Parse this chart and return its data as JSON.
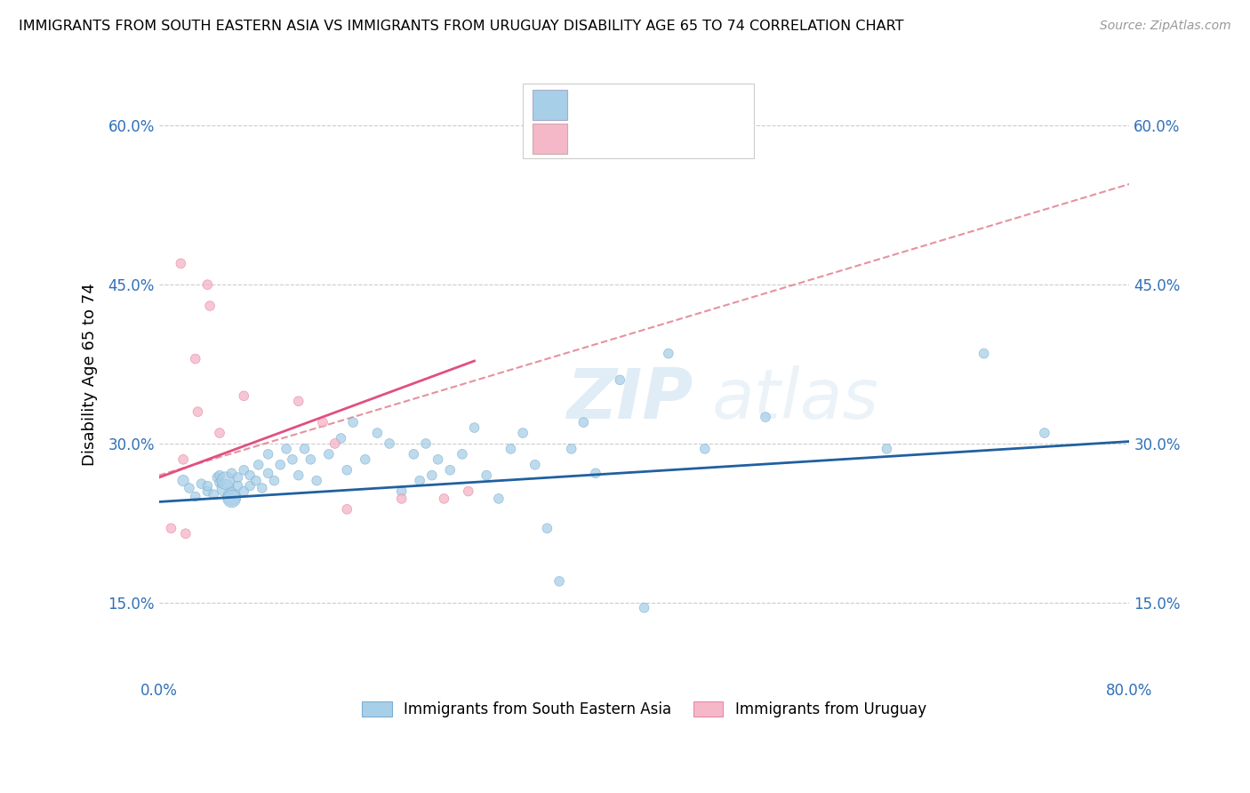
{
  "title": "IMMIGRANTS FROM SOUTH EASTERN ASIA VS IMMIGRANTS FROM URUGUAY DISABILITY AGE 65 TO 74 CORRELATION CHART",
  "source": "Source: ZipAtlas.com",
  "ylabel": "Disability Age 65 to 74",
  "xlim": [
    0.0,
    0.8
  ],
  "ylim": [
    0.08,
    0.65
  ],
  "y_ticks": [
    0.15,
    0.3,
    0.45,
    0.6
  ],
  "y_tick_labels": [
    "15.0%",
    "30.0%",
    "45.0%",
    "60.0%"
  ],
  "color_blue": "#a8cfe8",
  "color_blue_edge": "#7aaed0",
  "color_pink": "#f4b8c8",
  "color_pink_edge": "#e888a8",
  "color_blue_line": "#2060a0",
  "color_pink_line": "#e05080",
  "color_blue_text": "#3070b8",
  "color_dashed_line": "#e08090",
  "watermark_zip": "ZIP",
  "watermark_atlas": "atlas",
  "blue_scatter_x": [
    0.02,
    0.025,
    0.03,
    0.035,
    0.04,
    0.04,
    0.045,
    0.048,
    0.05,
    0.05,
    0.055,
    0.055,
    0.06,
    0.06,
    0.06,
    0.065,
    0.065,
    0.07,
    0.07,
    0.075,
    0.075,
    0.08,
    0.082,
    0.085,
    0.09,
    0.09,
    0.095,
    0.1,
    0.105,
    0.11,
    0.115,
    0.12,
    0.125,
    0.13,
    0.14,
    0.15,
    0.155,
    0.16,
    0.17,
    0.18,
    0.19,
    0.2,
    0.21,
    0.215,
    0.22,
    0.225,
    0.23,
    0.24,
    0.25,
    0.26,
    0.27,
    0.28,
    0.29,
    0.3,
    0.31,
    0.32,
    0.33,
    0.34,
    0.35,
    0.36,
    0.38,
    0.4,
    0.42,
    0.45,
    0.5,
    0.6,
    0.68,
    0.73
  ],
  "blue_scatter_y": [
    0.265,
    0.258,
    0.25,
    0.262,
    0.255,
    0.26,
    0.252,
    0.268,
    0.263,
    0.27,
    0.258,
    0.265,
    0.25,
    0.248,
    0.272,
    0.268,
    0.26,
    0.255,
    0.275,
    0.27,
    0.26,
    0.265,
    0.28,
    0.258,
    0.272,
    0.29,
    0.265,
    0.28,
    0.295,
    0.285,
    0.27,
    0.295,
    0.285,
    0.265,
    0.29,
    0.305,
    0.275,
    0.32,
    0.285,
    0.31,
    0.3,
    0.255,
    0.29,
    0.265,
    0.3,
    0.27,
    0.285,
    0.275,
    0.29,
    0.315,
    0.27,
    0.248,
    0.295,
    0.31,
    0.28,
    0.22,
    0.17,
    0.295,
    0.32,
    0.272,
    0.36,
    0.145,
    0.385,
    0.295,
    0.325,
    0.295,
    0.385,
    0.31
  ],
  "blue_scatter_size": [
    80,
    60,
    60,
    60,
    60,
    60,
    60,
    60,
    60,
    60,
    200,
    200,
    200,
    200,
    60,
    60,
    60,
    60,
    60,
    60,
    60,
    60,
    60,
    60,
    60,
    60,
    60,
    60,
    60,
    60,
    60,
    60,
    60,
    60,
    60,
    60,
    60,
    60,
    60,
    60,
    60,
    60,
    60,
    60,
    60,
    60,
    60,
    60,
    60,
    60,
    60,
    60,
    60,
    60,
    60,
    60,
    60,
    60,
    60,
    60,
    60,
    60,
    60,
    60,
    60,
    60,
    60,
    60
  ],
  "pink_scatter_x": [
    0.01,
    0.018,
    0.02,
    0.022,
    0.03,
    0.032,
    0.04,
    0.042,
    0.05,
    0.07,
    0.115,
    0.135,
    0.145,
    0.155,
    0.2,
    0.235,
    0.255
  ],
  "pink_scatter_y": [
    0.22,
    0.47,
    0.285,
    0.215,
    0.38,
    0.33,
    0.45,
    0.43,
    0.31,
    0.345,
    0.34,
    0.32,
    0.3,
    0.238,
    0.248,
    0.248,
    0.255
  ],
  "pink_scatter_size": [
    60,
    60,
    60,
    60,
    60,
    60,
    60,
    60,
    60,
    60,
    60,
    60,
    60,
    60,
    60,
    60,
    60
  ],
  "blue_line_x": [
    0.0,
    0.8
  ],
  "blue_line_y": [
    0.245,
    0.302
  ],
  "pink_line_x": [
    0.0,
    0.26
  ],
  "pink_line_y": [
    0.268,
    0.378
  ],
  "dashed_line_x": [
    0.0,
    0.8
  ],
  "dashed_line_y": [
    0.27,
    0.545
  ],
  "bottom_legend_items": [
    "Immigrants from South Eastern Asia",
    "Immigrants from Uruguay"
  ]
}
